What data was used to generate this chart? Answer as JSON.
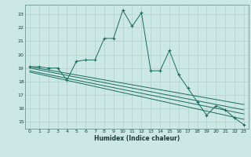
{
  "xlabel": "Humidex (Indice chaleur)",
  "bg_color": "#cce8e5",
  "grid_color": "#b0d0cc",
  "line_color": "#1a6b5e",
  "xlim": [
    -0.5,
    23.5
  ],
  "ylim": [
    14.5,
    23.7
  ],
  "yticks": [
    15,
    16,
    17,
    18,
    19,
    20,
    21,
    22,
    23
  ],
  "xticks": [
    0,
    1,
    2,
    3,
    4,
    5,
    6,
    7,
    8,
    9,
    10,
    11,
    12,
    13,
    14,
    15,
    16,
    17,
    18,
    19,
    20,
    21,
    22,
    23
  ],
  "main_series": [
    [
      0,
      19.1
    ],
    [
      1,
      19.1
    ],
    [
      2,
      19.0
    ],
    [
      3,
      19.0
    ],
    [
      4,
      18.1
    ],
    [
      5,
      19.5
    ],
    [
      6,
      19.6
    ],
    [
      7,
      19.6
    ],
    [
      8,
      21.2
    ],
    [
      9,
      21.2
    ],
    [
      10,
      23.3
    ],
    [
      11,
      22.1
    ],
    [
      12,
      23.1
    ],
    [
      13,
      18.8
    ],
    [
      14,
      18.8
    ],
    [
      15,
      20.3
    ],
    [
      16,
      18.5
    ],
    [
      17,
      17.5
    ],
    [
      18,
      16.5
    ],
    [
      19,
      15.5
    ],
    [
      20,
      16.2
    ],
    [
      21,
      15.9
    ],
    [
      22,
      15.3
    ],
    [
      23,
      14.8
    ]
  ],
  "trend_lines": [
    [
      [
        0,
        19.1
      ],
      [
        23,
        16.3
      ]
    ],
    [
      [
        0,
        19.0
      ],
      [
        23,
        15.9
      ]
    ],
    [
      [
        0,
        18.8
      ],
      [
        23,
        15.6
      ]
    ],
    [
      [
        0,
        18.7
      ],
      [
        23,
        15.2
      ]
    ]
  ]
}
